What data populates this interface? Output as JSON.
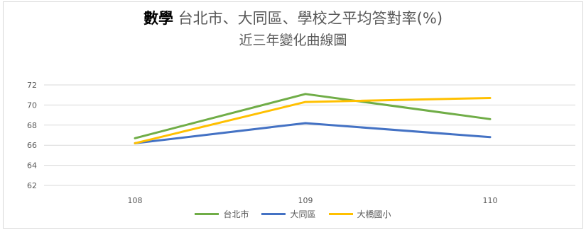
{
  "chart_data": {
    "type": "line",
    "title_bold": "數學",
    "title_rest": "台北市、大同區、學校之平均答對率(%)",
    "subtitle": "近三年變化曲線圖",
    "categories": [
      "108",
      "109",
      "110"
    ],
    "ylim": [
      62,
      72
    ],
    "yticks": [
      "62",
      "64",
      "66",
      "68",
      "70",
      "72"
    ],
    "grid": true,
    "legend_position": "bottom",
    "series": [
      {
        "name": "台北市",
        "color": "#70ad47",
        "values": [
          66.7,
          71.1,
          68.6
        ]
      },
      {
        "name": "大同區",
        "color": "#4472c4",
        "values": [
          66.2,
          68.2,
          66.8
        ]
      },
      {
        "name": "大橋國小",
        "color": "#ffc000",
        "values": [
          66.2,
          70.3,
          70.7
        ]
      }
    ]
  }
}
